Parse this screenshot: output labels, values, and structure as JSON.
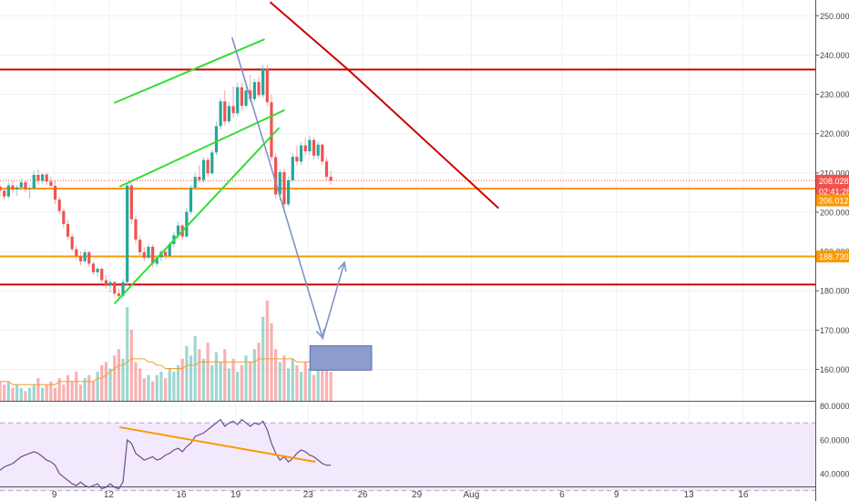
{
  "chart_data": {
    "type": "candlestick",
    "title": "",
    "x_axis": {
      "tick_labels": [
        "9",
        "12",
        "16",
        "19",
        "23",
        "26",
        "29",
        "Aug",
        "6",
        "9",
        "13",
        "16"
      ],
      "tick_dates": [
        "2018-07-09",
        "2018-07-12",
        "2018-07-16",
        "2018-07-19",
        "2018-07-23",
        "2018-07-26",
        "2018-07-29",
        "2018-08-01",
        "2018-08-06",
        "2018-08-09",
        "2018-08-13",
        "2018-08-16"
      ]
    },
    "price_axis": {
      "ylim": [
        152,
        254
      ],
      "tick_labels": [
        "250.000",
        "240.000",
        "230.000",
        "220.000",
        "210.000",
        "200.000",
        "190.000",
        "180.000",
        "170.000",
        "160.000"
      ],
      "tick_values": [
        250,
        240,
        230,
        220,
        210,
        200,
        190,
        180,
        170,
        160
      ],
      "gridlines": true,
      "price_tags": [
        {
          "label": "208.028",
          "value": 208.03,
          "color": "#ef5350"
        },
        {
          "label": "02:41:28",
          "value": 205.3,
          "color": "#ef5350"
        },
        {
          "label": "206.012",
          "value": 203.0,
          "color": "#ff9800"
        },
        {
          "label": "188.730",
          "value": 188.73,
          "color": "#ff9800"
        }
      ]
    },
    "horizontal_levels": [
      {
        "value": 236.3,
        "color": "#cc0000"
      },
      {
        "value": 206.0,
        "color": "#ff9800"
      },
      {
        "value": 188.73,
        "color": "#ff9800"
      },
      {
        "value": 181.6,
        "color": "#cc0000"
      }
    ],
    "trend_lines": [
      {
        "color": "#cc0000",
        "points": [
          [
            20.9,
            253.5
          ],
          [
            25.2,
            236.3
          ],
          [
            33.5,
            201.0
          ]
        ]
      },
      {
        "color": "#33dd33",
        "points": [
          [
            12.3,
            227.8
          ],
          [
            20.6,
            244.0
          ]
        ]
      },
      {
        "color": "#33dd33",
        "points": [
          [
            12.6,
            206.5
          ],
          [
            21.7,
            226.0
          ]
        ]
      },
      {
        "color": "#33dd33",
        "points": [
          [
            12.3,
            176.7
          ],
          [
            21.4,
            221.5
          ]
        ]
      }
    ],
    "projection": {
      "color": "#7f93c4",
      "path": [
        [
          18.8,
          244.5
        ],
        [
          23.8,
          168.0
        ],
        [
          25.0,
          187.2
        ]
      ],
      "target_box": {
        "x_range": [
          23.1,
          26.5
        ],
        "y_range": [
          159.8,
          166.0
        ],
        "color": "#8c9ccf"
      }
    },
    "candles_ohlc": [
      [
        206.5,
        207.0,
        204.0,
        205.5
      ],
      [
        205.5,
        206.0,
        203.2,
        204.0
      ],
      [
        204.0,
        207.5,
        203.5,
        206.8
      ],
      [
        206.8,
        208.0,
        205.0,
        205.8
      ],
      [
        205.8,
        207.0,
        204.2,
        206.3
      ],
      [
        206.3,
        208.5,
        205.5,
        207.6
      ],
      [
        207.6,
        208.0,
        205.0,
        205.8
      ],
      [
        205.8,
        207.0,
        203.5,
        206.0
      ],
      [
        206.0,
        210.5,
        205.5,
        209.5
      ],
      [
        209.5,
        211.0,
        207.0,
        208.0
      ],
      [
        208.0,
        210.0,
        207.2,
        209.6
      ],
      [
        209.6,
        210.0,
        207.0,
        207.8
      ],
      [
        207.8,
        209.0,
        206.0,
        206.7
      ],
      [
        206.7,
        208.0,
        202.0,
        203.2
      ],
      [
        203.2,
        204.0,
        199.5,
        200.3
      ],
      [
        200.3,
        201.0,
        196.0,
        197.0
      ],
      [
        197.0,
        198.0,
        193.0,
        193.8
      ],
      [
        193.8,
        194.5,
        190.0,
        190.6
      ],
      [
        190.6,
        191.5,
        188.0,
        188.8
      ],
      [
        188.8,
        190.0,
        186.5,
        187.5
      ],
      [
        187.5,
        190.5,
        187.0,
        189.8
      ],
      [
        189.8,
        190.2,
        186.0,
        186.9
      ],
      [
        186.9,
        187.5,
        184.0,
        184.7
      ],
      [
        184.7,
        186.0,
        183.5,
        185.6
      ],
      [
        185.6,
        186.0,
        182.0,
        182.7
      ],
      [
        182.7,
        184.0,
        180.5,
        181.3
      ],
      [
        181.3,
        183.0,
        179.5,
        182.2
      ],
      [
        182.2,
        182.5,
        178.5,
        179.3
      ],
      [
        179.3,
        180.5,
        177.5,
        178.7
      ],
      [
        178.7,
        183.0,
        178.0,
        182.2
      ],
      [
        182.2,
        207.5,
        181.5,
        206.8
      ],
      [
        206.8,
        207.5,
        197.0,
        198.2
      ],
      [
        198.2,
        199.0,
        192.0,
        193.0
      ],
      [
        193.0,
        194.0,
        189.0,
        189.8
      ],
      [
        189.8,
        191.0,
        187.5,
        188.4
      ],
      [
        188.4,
        192.0,
        188.0,
        191.2
      ],
      [
        191.2,
        191.8,
        186.0,
        186.9
      ],
      [
        186.9,
        189.0,
        186.0,
        188.5
      ],
      [
        188.5,
        190.5,
        187.5,
        189.9
      ],
      [
        189.9,
        190.5,
        188.0,
        188.9
      ],
      [
        188.9,
        192.5,
        188.5,
        191.9
      ],
      [
        191.9,
        195.0,
        191.0,
        194.1
      ],
      [
        194.1,
        197.5,
        193.5,
        196.6
      ],
      [
        196.6,
        197.0,
        193.0,
        193.8
      ],
      [
        193.8,
        201.0,
        193.5,
        200.1
      ],
      [
        200.1,
        207.0,
        199.5,
        206.2
      ],
      [
        206.2,
        210.0,
        205.5,
        209.0
      ],
      [
        209.0,
        212.0,
        207.5,
        208.2
      ],
      [
        208.2,
        214.0,
        207.5,
        213.3
      ],
      [
        213.3,
        214.0,
        209.0,
        209.9
      ],
      [
        209.9,
        216.0,
        209.5,
        215.2
      ],
      [
        215.2,
        223.0,
        214.5,
        221.9
      ],
      [
        221.9,
        229.0,
        221.0,
        228.2
      ],
      [
        228.2,
        231.0,
        222.0,
        223.1
      ],
      [
        223.1,
        228.0,
        222.5,
        227.0
      ],
      [
        227.0,
        232.0,
        224.0,
        225.2
      ],
      [
        225.2,
        233.0,
        224.5,
        231.8
      ],
      [
        231.8,
        233.0,
        226.0,
        227.1
      ],
      [
        227.1,
        232.0,
        226.5,
        231.0
      ],
      [
        231.0,
        235.0,
        228.0,
        228.8
      ],
      [
        228.8,
        234.0,
        228.0,
        233.1
      ],
      [
        233.1,
        234.5,
        229.0,
        229.8
      ],
      [
        229.8,
        237.5,
        229.0,
        236.6
      ],
      [
        236.6,
        237.5,
        227.0,
        228.0
      ],
      [
        228.0,
        230.0,
        213.0,
        214.0
      ],
      [
        214.0,
        215.0,
        203.5,
        204.5
      ],
      [
        204.5,
        211.0,
        203.0,
        210.2
      ],
      [
        210.2,
        211.0,
        201.0,
        202.0
      ],
      [
        202.0,
        209.0,
        201.5,
        208.1
      ],
      [
        208.1,
        215.0,
        207.5,
        214.1
      ],
      [
        214.1,
        217.0,
        212.0,
        212.9
      ],
      [
        212.9,
        218.0,
        212.0,
        217.0
      ],
      [
        217.0,
        219.0,
        214.5,
        215.5
      ],
      [
        215.5,
        219.5,
        214.5,
        218.4
      ],
      [
        218.4,
        219.0,
        213.5,
        214.4
      ],
      [
        214.4,
        218.0,
        213.5,
        217.2
      ],
      [
        217.2,
        217.5,
        212.0,
        212.9
      ],
      [
        212.9,
        214.0,
        208.0,
        209.0
      ],
      [
        209.0,
        210.5,
        207.0,
        208.0
      ]
    ],
    "volume": [
      6,
      5,
      6,
      4,
      5,
      4,
      3,
      4,
      5,
      7,
      4,
      5,
      6,
      4,
      7,
      5,
      8,
      6,
      9,
      5,
      7,
      8,
      6,
      9,
      11,
      12,
      10,
      14,
      16,
      13,
      29,
      22,
      12,
      10,
      7,
      8,
      6,
      8,
      9,
      7,
      10,
      9,
      11,
      13,
      17,
      14,
      20,
      16,
      13,
      18,
      11,
      15,
      12,
      16,
      10,
      13,
      9,
      11,
      14,
      12,
      16,
      18,
      26,
      31,
      24,
      16,
      12,
      14,
      10,
      13,
      11,
      9,
      12,
      10,
      8,
      11,
      14,
      13,
      9
    ],
    "volume_ma": [
      6,
      6,
      6,
      5,
      5,
      5,
      5,
      5,
      5,
      5,
      5,
      5,
      5,
      5,
      6,
      6,
      6,
      6,
      6,
      6,
      6,
      6,
      6,
      7,
      7,
      8,
      9,
      10,
      11,
      11,
      12,
      13,
      13,
      13,
      13,
      12,
      12,
      11,
      11,
      10,
      10,
      10,
      10,
      10,
      11,
      11,
      11,
      12,
      12,
      12,
      12,
      12,
      12,
      12,
      12,
      12,
      12,
      12,
      12,
      12,
      12,
      13,
      13,
      13,
      13,
      13,
      13,
      13,
      13,
      13,
      12,
      12,
      12,
      12,
      12,
      12,
      12,
      12,
      12
    ],
    "rsi": {
      "ylim": [
        33,
        82
      ],
      "tick_labels": [
        "80.0000",
        "60.0000",
        "40.0000"
      ],
      "tick_values": [
        80,
        60,
        40
      ],
      "bands": [
        70,
        30
      ],
      "values": [
        42,
        44,
        45,
        46,
        48,
        50,
        51,
        52,
        53,
        52,
        50,
        48,
        47,
        45,
        40,
        38,
        36,
        34,
        33,
        35,
        33,
        32,
        33,
        34,
        31,
        32,
        34,
        32,
        31,
        35,
        60,
        58,
        52,
        50,
        48,
        49,
        50,
        48,
        49,
        51,
        52,
        54,
        55,
        53,
        56,
        58,
        62,
        63,
        64,
        66,
        68,
        70,
        72,
        68,
        70,
        71,
        69,
        72,
        70,
        68,
        70,
        69,
        71,
        66,
        58,
        52,
        48,
        50,
        47,
        49,
        52,
        54,
        53,
        51,
        50,
        48,
        46,
        45,
        45
      ],
      "divergence_line": {
        "color": "#ff9800",
        "points": [
          [
            12.6,
            67.5
          ],
          [
            23.4,
            47.0
          ]
        ]
      }
    }
  }
}
